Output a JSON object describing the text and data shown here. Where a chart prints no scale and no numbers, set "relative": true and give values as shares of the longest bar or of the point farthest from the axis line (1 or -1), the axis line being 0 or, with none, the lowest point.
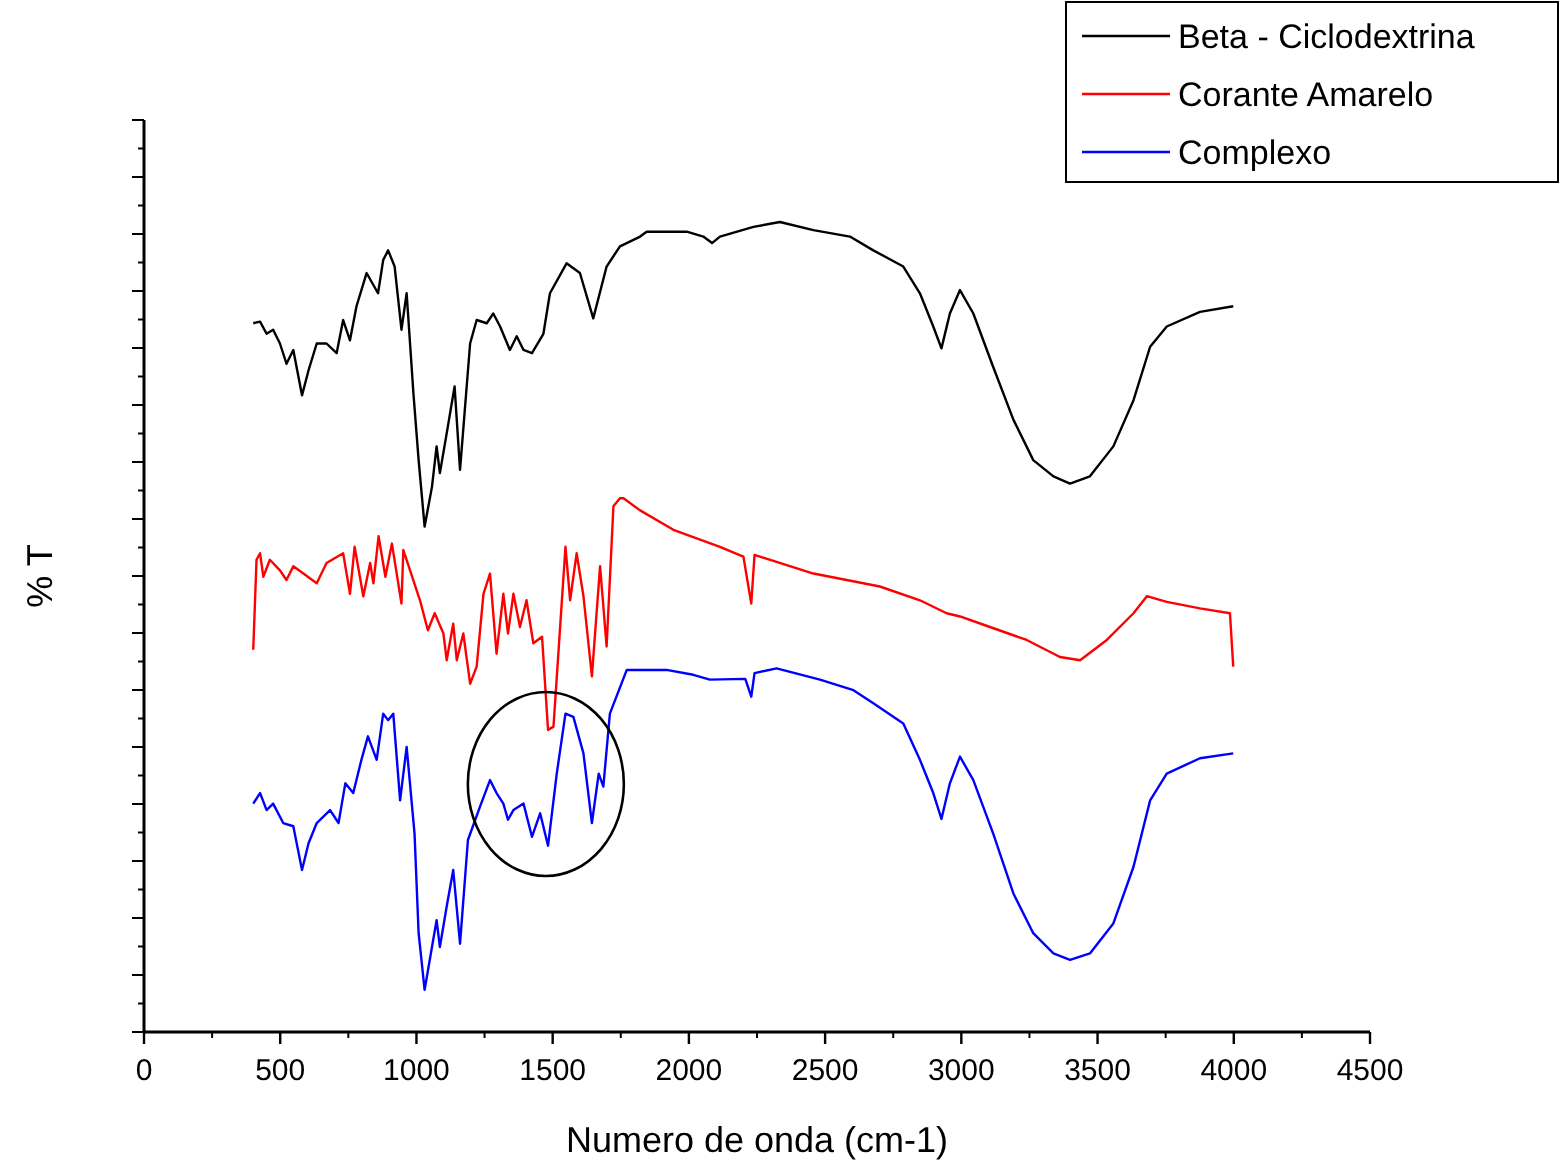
{
  "chart_data": {
    "type": "line",
    "relative": true,
    "xlabel": "Numero de onda (cm-1)",
    "ylabel": "% T",
    "xlim": [
      0,
      4500
    ],
    "xticks": [
      0,
      500,
      1000,
      1500,
      2000,
      2500,
      3000,
      3500,
      4000,
      4500
    ],
    "legend": "top right",
    "line_style": "solid",
    "marker": "none",
    "grid": false,
    "series": [
      {
        "name": "Beta - Ciclodextrina",
        "color": "#000000",
        "x": [
          401,
          426,
          450,
          474,
          499,
          523,
          548,
          580,
          604,
          634,
          670,
          707,
          731,
          756,
          780,
          817,
          859,
          878,
          896,
          920,
          945,
          964,
          989,
          1008,
          1030,
          1057,
          1074,
          1086,
          1111,
          1140,
          1160,
          1197,
          1221,
          1258,
          1282,
          1307,
          1343,
          1368,
          1393,
          1424,
          1466,
          1490,
          1551,
          1600,
          1649,
          1698,
          1747,
          1821,
          1845,
          1992,
          2053,
          2085,
          2114,
          2237,
          2334,
          2457,
          2591,
          2677,
          2787,
          2848,
          2897,
          2927,
          2958,
          2995,
          3044,
          3117,
          3191,
          3264,
          3338,
          3399,
          3472,
          3558,
          3632,
          3693,
          3754,
          3876,
          3998
        ],
        "values": [
          0.875,
          0.877,
          0.862,
          0.867,
          0.85,
          0.825,
          0.842,
          0.786,
          0.817,
          0.85,
          0.85,
          0.838,
          0.879,
          0.854,
          0.896,
          0.937,
          0.912,
          0.953,
          0.965,
          0.945,
          0.867,
          0.912,
          0.788,
          0.706,
          0.624,
          0.673,
          0.723,
          0.69,
          0.739,
          0.797,
          0.694,
          0.85,
          0.879,
          0.875,
          0.887,
          0.871,
          0.842,
          0.859,
          0.842,
          0.838,
          0.862,
          0.912,
          0.949,
          0.937,
          0.881,
          0.945,
          0.97,
          0.982,
          0.988,
          0.988,
          0.982,
          0.974,
          0.982,
          0.994,
          1,
          0.99,
          0.982,
          0.965,
          0.945,
          0.912,
          0.871,
          0.844,
          0.887,
          0.916,
          0.887,
          0.821,
          0.756,
          0.706,
          0.686,
          0.677,
          0.686,
          0.723,
          0.78,
          0.846,
          0.871,
          0.889,
          0.896
        ]
      },
      {
        "name": "Corante Amarelo",
        "color": "#ff0000",
        "x": [
          401,
          413,
          426,
          438,
          462,
          499,
          523,
          548,
          585,
          634,
          670,
          731,
          756,
          773,
          805,
          830,
          842,
          861,
          886,
          910,
          945,
          952,
          1013,
          1042,
          1067,
          1099,
          1111,
          1135,
          1148,
          1172,
          1197,
          1221,
          1246,
          1270,
          1294,
          1319,
          1336,
          1356,
          1380,
          1404,
          1429,
          1461,
          1483,
          1503,
          1547,
          1564,
          1588,
          1613,
          1644,
          1674,
          1698,
          1723,
          1747,
          1760,
          1821,
          1943,
          2114,
          2200,
          2229,
          2241,
          2457,
          2701,
          2848,
          2946,
          2995,
          3105,
          3240,
          3362,
          3436,
          3534,
          3632,
          3681,
          3754,
          3876,
          3986,
          3998
        ],
        "values": [
          0.472,
          0.583,
          0.591,
          0.562,
          0.583,
          0.57,
          0.558,
          0.575,
          0.566,
          0.554,
          0.579,
          0.591,
          0.541,
          0.599,
          0.538,
          0.579,
          0.554,
          0.612,
          0.562,
          0.603,
          0.529,
          0.595,
          0.533,
          0.496,
          0.517,
          0.492,
          0.459,
          0.504,
          0.459,
          0.492,
          0.43,
          0.451,
          0.541,
          0.566,
          0.467,
          0.541,
          0.492,
          0.541,
          0.5,
          0.533,
          0.48,
          0.488,
          0.373,
          0.377,
          0.599,
          0.533,
          0.591,
          0.538,
          0.439,
          0.575,
          0.476,
          0.649,
          0.659,
          0.659,
          0.644,
          0.62,
          0.599,
          0.587,
          0.529,
          0.589,
          0.566,
          0.55,
          0.533,
          0.517,
          0.513,
          0.5,
          0.484,
          0.463,
          0.459,
          0.484,
          0.517,
          0.538,
          0.531,
          0.523,
          0.517,
          0.451
        ]
      },
      {
        "name": "Complexo",
        "color": "#0000ff",
        "x": [
          401,
          426,
          450,
          474,
          511,
          548,
          580,
          604,
          634,
          683,
          714,
          739,
          768,
          798,
          822,
          854,
          878,
          896,
          915,
          940,
          964,
          993,
          1008,
          1030,
          1057,
          1074,
          1086,
          1111,
          1135,
          1160,
          1189,
          1233,
          1270,
          1294,
          1319,
          1336,
          1356,
          1393,
          1424,
          1454,
          1483,
          1515,
          1547,
          1576,
          1613,
          1644,
          1669,
          1686,
          1710,
          1772,
          1918,
          2016,
          2077,
          2207,
          2229,
          2241,
          2322,
          2481,
          2604,
          2677,
          2787,
          2848,
          2897,
          2927,
          2958,
          2995,
          3044,
          3117,
          3191,
          3264,
          3338,
          3399,
          3472,
          3558,
          3632,
          3693,
          3754,
          3876,
          3998
        ],
        "values": [
          0.282,
          0.295,
          0.274,
          0.282,
          0.258,
          0.254,
          0.2,
          0.233,
          0.258,
          0.274,
          0.258,
          0.307,
          0.295,
          0.336,
          0.365,
          0.336,
          0.393,
          0.385,
          0.393,
          0.286,
          0.352,
          0.245,
          0.122,
          0.052,
          0.105,
          0.138,
          0.105,
          0.155,
          0.2,
          0.109,
          0.237,
          0.278,
          0.311,
          0.295,
          0.282,
          0.262,
          0.274,
          0.282,
          0.241,
          0.27,
          0.23,
          0.319,
          0.393,
          0.389,
          0.344,
          0.258,
          0.319,
          0.303,
          0.393,
          0.447,
          0.447,
          0.441,
          0.435,
          0.436,
          0.414,
          0.443,
          0.449,
          0.435,
          0.422,
          0.406,
          0.381,
          0.336,
          0.295,
          0.263,
          0.307,
          0.34,
          0.311,
          0.245,
          0.171,
          0.122,
          0.097,
          0.089,
          0.097,
          0.134,
          0.204,
          0.286,
          0.319,
          0.338,
          0.344
        ]
      }
    ]
  }
}
